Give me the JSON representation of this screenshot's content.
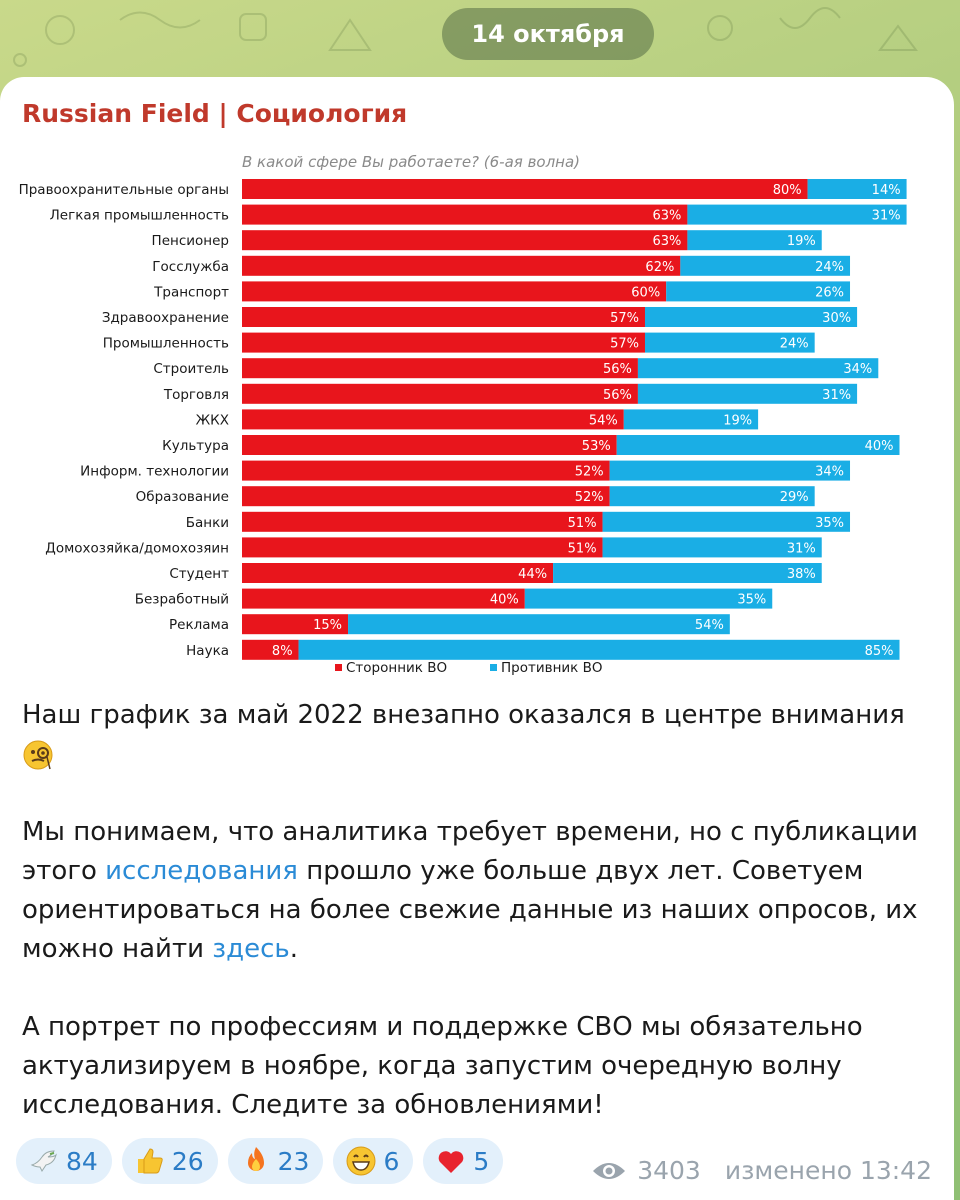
{
  "date_label": "14 октября",
  "channel": {
    "name": "Russian Field | Социология"
  },
  "chart_data": {
    "type": "bar",
    "stacked": true,
    "orientation": "horizontal",
    "title": "В какой сфере Вы работаете? (6-ая волна)",
    "categories": [
      "Правоохранительные органы",
      "Легкая промышленность",
      "Пенсионер",
      "Госслужба",
      "Транспорт",
      "Здравоохранение",
      "Промышленность",
      "Строитель",
      "Торговля",
      "ЖКХ",
      "Культура",
      "Информ. технологии",
      "Образование",
      "Банки",
      "Домохозяйка/домохозяин",
      "Студент",
      "Безработный",
      "Реклама",
      "Наука"
    ],
    "series": [
      {
        "name": "Сторонник ВО",
        "color": "#e8151c",
        "values": [
          80,
          63,
          63,
          62,
          60,
          57,
          57,
          56,
          56,
          54,
          53,
          52,
          52,
          51,
          51,
          44,
          40,
          15,
          8
        ]
      },
      {
        "name": "Противник ВО",
        "color": "#1aaee5",
        "values": [
          14,
          31,
          19,
          24,
          26,
          30,
          24,
          34,
          31,
          19,
          40,
          34,
          29,
          35,
          31,
          38,
          35,
          54,
          85
        ]
      }
    ],
    "value_suffix": "%",
    "xlim": [
      0,
      100
    ],
    "legend_position": "bottom"
  },
  "post": {
    "p1": "Наш график за май 2022 внезапно оказался в центре внимания",
    "p2_a": "Мы понимаем, что аналитика требует времени, но с публикации этого ",
    "p2_link": "исследования",
    "p2_b": " прошло уже больше двух лет. Советуем ориентироваться на более свежие данные из наших опросов, их можно найти ",
    "p2_link2": "здесь",
    "p2_c": ".",
    "p3": "А портрет по профессиям и поддержке СВО мы обязательно актуализируем в ноябре, когда запустим очередную волну исследования. Следите за обновлениями!"
  },
  "reactions": [
    {
      "icon": "dove-icon",
      "count": "84"
    },
    {
      "icon": "thumbs-up-icon",
      "count": "26"
    },
    {
      "icon": "fire-icon",
      "count": "23"
    },
    {
      "icon": "grin-icon",
      "count": "6"
    },
    {
      "icon": "heart-icon",
      "count": "5"
    }
  ],
  "meta": {
    "views": "3403",
    "edited": "изменено 13:42"
  }
}
